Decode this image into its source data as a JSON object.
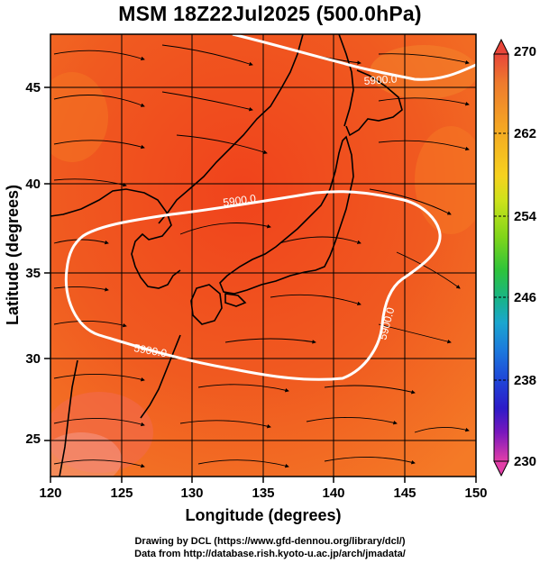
{
  "title": "MSM 18Z22Jul2025 (500.0hPa)",
  "axes": {
    "xlabel": "Longitude (degrees)",
    "ylabel": "Latitude  (degrees)",
    "xticks": [
      "120",
      "125",
      "130",
      "135",
      "140",
      "145",
      "150"
    ],
    "yticks": [
      "25",
      "30",
      "35",
      "40",
      "45"
    ]
  },
  "colorbar": {
    "labels": [
      "270",
      "262",
      "254",
      "246",
      "238",
      "230"
    ],
    "colors": [
      "#e8463a",
      "#ee7a2e",
      "#f4a623",
      "#f6d21e",
      "#cde21b",
      "#7fd51a",
      "#2fc43a",
      "#18b487",
      "#1aa6cf",
      "#1c78dd",
      "#1f46d8",
      "#2d1bc8",
      "#7a18bd",
      "#c21cae",
      "#e23ea8"
    ]
  },
  "contours": [
    {
      "label": "5900.0"
    },
    {
      "label": "5900.0"
    },
    {
      "label": "5900.0"
    },
    {
      "label": "5900.0"
    }
  ],
  "footer": {
    "line1": "Drawing by DCL (https://www.gfd-dennou.org/library/dcl/)",
    "line2": "Data from http://database.rish.kyoto-u.ac.jp/arch/jmadata/"
  }
}
